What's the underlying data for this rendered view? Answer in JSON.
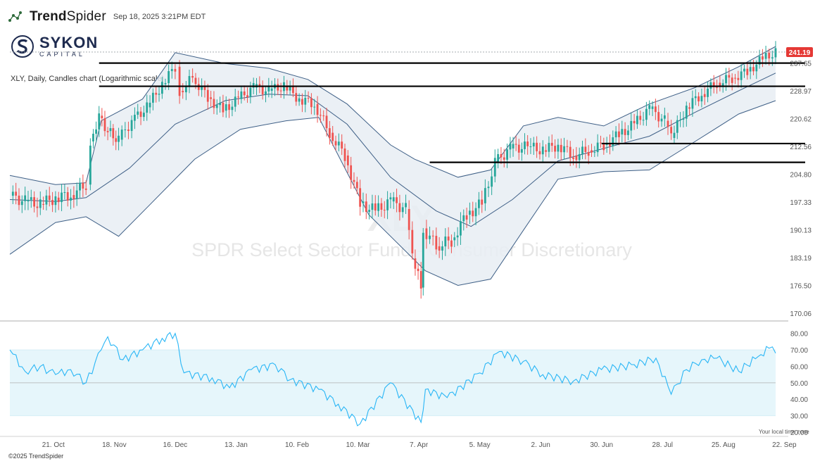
{
  "header": {
    "brand_bold": "Trend",
    "brand_light": "Spider",
    "timestamp": "Sep 18, 2025 3:21PM EDT"
  },
  "logo": {
    "name": "SYKON",
    "sub": "CAPITAL",
    "color": "#1e2b4f"
  },
  "description": "XLY, Daily, Candles chart (Logarithmic scale)",
  "footer": "©2025 TrendSpider",
  "timezone_note": "Your local time zone",
  "chart_data": [
    {
      "type": "candlestick",
      "title": "",
      "symbol": "XLY",
      "watermark_symbol": "XLY",
      "watermark_name": "SPDR Select Sector Fund - Consumer Discretionary",
      "scale": "log",
      "ylim": [
        170.06,
        243
      ],
      "y_ticks": [
        "170.06",
        "176.50",
        "183.19",
        "190.13",
        "197.33",
        "204.80",
        "212.56",
        "220.62",
        "228.97",
        "237.65"
      ],
      "last_price": "241.19",
      "x_ticks": [
        "21. Oct",
        "18. Nov",
        "16. Dec",
        "13. Jan",
        "10. Feb",
        "10. Mar",
        "7. Apr",
        "5. May",
        "2. Jun",
        "30. Jun",
        "28. Jul",
        "25. Aug",
        "22. Sep"
      ],
      "x_tick_dates": [
        "2024-10-21",
        "2024-11-18",
        "2024-12-16",
        "2025-01-13",
        "2025-02-10",
        "2025-03-10",
        "2025-04-07",
        "2025-05-05",
        "2025-06-02",
        "2025-06-30",
        "2025-07-28",
        "2025-08-25",
        "2025-09-22"
      ],
      "x_range": [
        "2024-10-01",
        "2025-09-18"
      ],
      "closes": [
        {
          "date": "2024-10-01",
          "close": 199.0
        },
        {
          "date": "2024-10-08",
          "close": 197.5
        },
        {
          "date": "2024-10-15",
          "close": 196.8
        },
        {
          "date": "2024-10-22",
          "close": 198.5
        },
        {
          "date": "2024-10-29",
          "close": 199.2
        },
        {
          "date": "2024-11-05",
          "close": 202.0
        },
        {
          "date": "2024-11-07",
          "close": 214.0
        },
        {
          "date": "2024-11-11",
          "close": 221.5
        },
        {
          "date": "2024-11-15",
          "close": 217.0
        },
        {
          "date": "2024-11-20",
          "close": 214.5
        },
        {
          "date": "2024-11-26",
          "close": 220.0
        },
        {
          "date": "2024-12-03",
          "close": 224.0
        },
        {
          "date": "2024-12-10",
          "close": 231.0
        },
        {
          "date": "2024-12-16",
          "close": 236.5
        },
        {
          "date": "2024-12-18",
          "close": 229.0
        },
        {
          "date": "2024-12-24",
          "close": 233.0
        },
        {
          "date": "2024-12-31",
          "close": 227.0
        },
        {
          "date": "2025-01-07",
          "close": 223.0
        },
        {
          "date": "2025-01-14",
          "close": 226.5
        },
        {
          "date": "2025-01-21",
          "close": 230.0
        },
        {
          "date": "2025-01-28",
          "close": 229.0
        },
        {
          "date": "2025-02-04",
          "close": 230.5
        },
        {
          "date": "2025-02-11",
          "close": 226.5
        },
        {
          "date": "2025-02-18",
          "close": 225.0
        },
        {
          "date": "2025-02-25",
          "close": 216.5
        },
        {
          "date": "2025-03-04",
          "close": 210.0
        },
        {
          "date": "2025-03-11",
          "close": 197.0
        },
        {
          "date": "2025-03-18",
          "close": 195.0
        },
        {
          "date": "2025-03-25",
          "close": 197.5
        },
        {
          "date": "2025-04-01",
          "close": 195.5
        },
        {
          "date": "2025-04-04",
          "close": 183.0
        },
        {
          "date": "2025-04-08",
          "close": 176.0
        },
        {
          "date": "2025-04-09",
          "close": 190.5
        },
        {
          "date": "2025-04-15",
          "close": 186.0
        },
        {
          "date": "2025-04-22",
          "close": 187.5
        },
        {
          "date": "2025-04-29",
          "close": 194.0
        },
        {
          "date": "2025-05-06",
          "close": 197.0
        },
        {
          "date": "2025-05-12",
          "close": 208.0
        },
        {
          "date": "2025-05-19",
          "close": 212.0
        },
        {
          "date": "2025-05-27",
          "close": 212.5
        },
        {
          "date": "2025-06-03",
          "close": 211.5
        },
        {
          "date": "2025-06-10",
          "close": 213.0
        },
        {
          "date": "2025-06-17",
          "close": 210.0
        },
        {
          "date": "2025-06-24",
          "close": 211.5
        },
        {
          "date": "2025-07-01",
          "close": 213.0
        },
        {
          "date": "2025-07-08",
          "close": 216.0
        },
        {
          "date": "2025-07-15",
          "close": 219.0
        },
        {
          "date": "2025-07-22",
          "close": 223.5
        },
        {
          "date": "2025-07-29",
          "close": 220.0
        },
        {
          "date": "2025-08-01",
          "close": 215.0
        },
        {
          "date": "2025-08-08",
          "close": 224.0
        },
        {
          "date": "2025-08-15",
          "close": 228.0
        },
        {
          "date": "2025-08-22",
          "close": 231.5
        },
        {
          "date": "2025-08-29",
          "close": 233.0
        },
        {
          "date": "2025-09-05",
          "close": 235.0
        },
        {
          "date": "2025-09-12",
          "close": 239.0
        },
        {
          "date": "2025-09-18",
          "close": 241.19
        }
      ],
      "bollinger": {
        "upper": [
          {
            "date": "2024-10-01",
            "value": 204.5
          },
          {
            "date": "2024-10-22",
            "value": 202.0
          },
          {
            "date": "2024-11-05",
            "value": 202.5
          },
          {
            "date": "2024-11-12",
            "value": 220.0
          },
          {
            "date": "2024-12-01",
            "value": 226.5
          },
          {
            "date": "2024-12-16",
            "value": 241.0
          },
          {
            "date": "2025-01-08",
            "value": 237.5
          },
          {
            "date": "2025-01-28",
            "value": 236.0
          },
          {
            "date": "2025-02-15",
            "value": 232.5
          },
          {
            "date": "2025-03-05",
            "value": 225.0
          },
          {
            "date": "2025-03-25",
            "value": 213.0
          },
          {
            "date": "2025-04-05",
            "value": 209.0
          },
          {
            "date": "2025-04-25",
            "value": 204.0
          },
          {
            "date": "2025-05-10",
            "value": 206.0
          },
          {
            "date": "2025-05-25",
            "value": 218.5
          },
          {
            "date": "2025-06-10",
            "value": 221.0
          },
          {
            "date": "2025-07-01",
            "value": 218.5
          },
          {
            "date": "2025-07-22",
            "value": 225.0
          },
          {
            "date": "2025-08-12",
            "value": 230.0
          },
          {
            "date": "2025-09-01",
            "value": 236.5
          },
          {
            "date": "2025-09-18",
            "value": 243.0
          }
        ],
        "middle": [
          {
            "date": "2024-10-01",
            "value": 198.0
          },
          {
            "date": "2024-10-22",
            "value": 197.5
          },
          {
            "date": "2024-11-05",
            "value": 198.5
          },
          {
            "date": "2024-11-25",
            "value": 206.5
          },
          {
            "date": "2024-12-16",
            "value": 219.0
          },
          {
            "date": "2025-01-08",
            "value": 226.0
          },
          {
            "date": "2025-01-28",
            "value": 228.0
          },
          {
            "date": "2025-02-15",
            "value": 227.5
          },
          {
            "date": "2025-03-05",
            "value": 219.0
          },
          {
            "date": "2025-03-25",
            "value": 204.0
          },
          {
            "date": "2025-04-15",
            "value": 195.0
          },
          {
            "date": "2025-05-01",
            "value": 191.0
          },
          {
            "date": "2025-05-20",
            "value": 198.0
          },
          {
            "date": "2025-06-10",
            "value": 208.5
          },
          {
            "date": "2025-07-01",
            "value": 212.0
          },
          {
            "date": "2025-07-22",
            "value": 215.5
          },
          {
            "date": "2025-08-12",
            "value": 222.5
          },
          {
            "date": "2025-09-01",
            "value": 229.0
          },
          {
            "date": "2025-09-18",
            "value": 234.5
          }
        ],
        "lower": [
          {
            "date": "2024-10-01",
            "value": 184.0
          },
          {
            "date": "2024-10-22",
            "value": 192.0
          },
          {
            "date": "2024-11-05",
            "value": 193.5
          },
          {
            "date": "2024-11-20",
            "value": 188.5
          },
          {
            "date": "2024-12-05",
            "value": 197.0
          },
          {
            "date": "2024-12-25",
            "value": 209.0
          },
          {
            "date": "2025-01-15",
            "value": 217.5
          },
          {
            "date": "2025-02-05",
            "value": 220.0
          },
          {
            "date": "2025-02-20",
            "value": 221.0
          },
          {
            "date": "2025-03-15",
            "value": 194.0
          },
          {
            "date": "2025-04-10",
            "value": 180.0
          },
          {
            "date": "2025-04-25",
            "value": 176.5
          },
          {
            "date": "2025-05-10",
            "value": 178.0
          },
          {
            "date": "2025-05-25",
            "value": 190.0
          },
          {
            "date": "2025-06-10",
            "value": 203.5
          },
          {
            "date": "2025-07-01",
            "value": 205.5
          },
          {
            "date": "2025-07-22",
            "value": 206.0
          },
          {
            "date": "2025-08-12",
            "value": 214.0
          },
          {
            "date": "2025-09-01",
            "value": 222.0
          },
          {
            "date": "2025-09-18",
            "value": 226.0
          }
        ]
      },
      "horizontal_levels": [
        {
          "value": 237.65,
          "from": "2024-11-11",
          "to": "2025-09-18"
        },
        {
          "value": 230.4,
          "from": "2024-11-11",
          "to": "2025-09-18"
        },
        {
          "value": 213.4,
          "from": "2025-06-30",
          "to": "2025-09-18"
        },
        {
          "value": 208.1,
          "from": "2025-04-12",
          "to": "2025-09-18"
        }
      ],
      "colors": {
        "up": "#26a69a",
        "down": "#ef5350",
        "band_fill": "#e7edf3",
        "band_line": "#3e5f86",
        "level": "#000000",
        "price_tag": "#e53935"
      }
    },
    {
      "type": "line",
      "title": "",
      "indicator": "RSI",
      "ylim": [
        20,
        85
      ],
      "y_ticks": [
        "20.00",
        "30.00",
        "40.00",
        "50.00",
        "60.00",
        "70.00",
        "80.00"
      ],
      "zone": [
        30,
        70
      ],
      "midline": 50,
      "values": [
        {
          "date": "2024-10-01",
          "value": 70
        },
        {
          "date": "2024-10-08",
          "value": 57
        },
        {
          "date": "2024-10-15",
          "value": 60
        },
        {
          "date": "2024-10-22",
          "value": 55
        },
        {
          "date": "2024-10-29",
          "value": 58
        },
        {
          "date": "2024-11-05",
          "value": 50
        },
        {
          "date": "2024-11-12",
          "value": 70
        },
        {
          "date": "2024-11-15",
          "value": 78
        },
        {
          "date": "2024-11-22",
          "value": 64
        },
        {
          "date": "2024-12-01",
          "value": 70
        },
        {
          "date": "2024-12-10",
          "value": 77
        },
        {
          "date": "2024-12-16",
          "value": 80
        },
        {
          "date": "2024-12-20",
          "value": 56
        },
        {
          "date": "2025-01-02",
          "value": 53
        },
        {
          "date": "2025-01-10",
          "value": 47
        },
        {
          "date": "2025-01-20",
          "value": 58
        },
        {
          "date": "2025-01-31",
          "value": 61
        },
        {
          "date": "2025-02-07",
          "value": 52
        },
        {
          "date": "2025-02-20",
          "value": 46
        },
        {
          "date": "2025-03-01",
          "value": 37
        },
        {
          "date": "2025-03-11",
          "value": 25
        },
        {
          "date": "2025-03-25",
          "value": 50
        },
        {
          "date": "2025-04-08",
          "value": 26
        },
        {
          "date": "2025-04-10",
          "value": 46
        },
        {
          "date": "2025-04-20",
          "value": 41
        },
        {
          "date": "2025-05-05",
          "value": 56
        },
        {
          "date": "2025-05-14",
          "value": 69
        },
        {
          "date": "2025-05-25",
          "value": 63
        },
        {
          "date": "2025-06-03",
          "value": 55
        },
        {
          "date": "2025-06-17",
          "value": 51
        },
        {
          "date": "2025-06-30",
          "value": 58
        },
        {
          "date": "2025-07-15",
          "value": 61
        },
        {
          "date": "2025-07-25",
          "value": 65
        },
        {
          "date": "2025-08-01",
          "value": 43
        },
        {
          "date": "2025-08-08",
          "value": 58
        },
        {
          "date": "2025-08-15",
          "value": 64
        },
        {
          "date": "2025-08-22",
          "value": 65
        },
        {
          "date": "2025-09-01",
          "value": 57
        },
        {
          "date": "2025-09-10",
          "value": 66
        },
        {
          "date": "2025-09-15",
          "value": 71
        },
        {
          "date": "2025-09-18",
          "value": 68
        }
      ],
      "colors": {
        "line": "#29b6f6",
        "zone_fill": "#e6f6fb",
        "midline": "#b0b0b0"
      }
    }
  ]
}
